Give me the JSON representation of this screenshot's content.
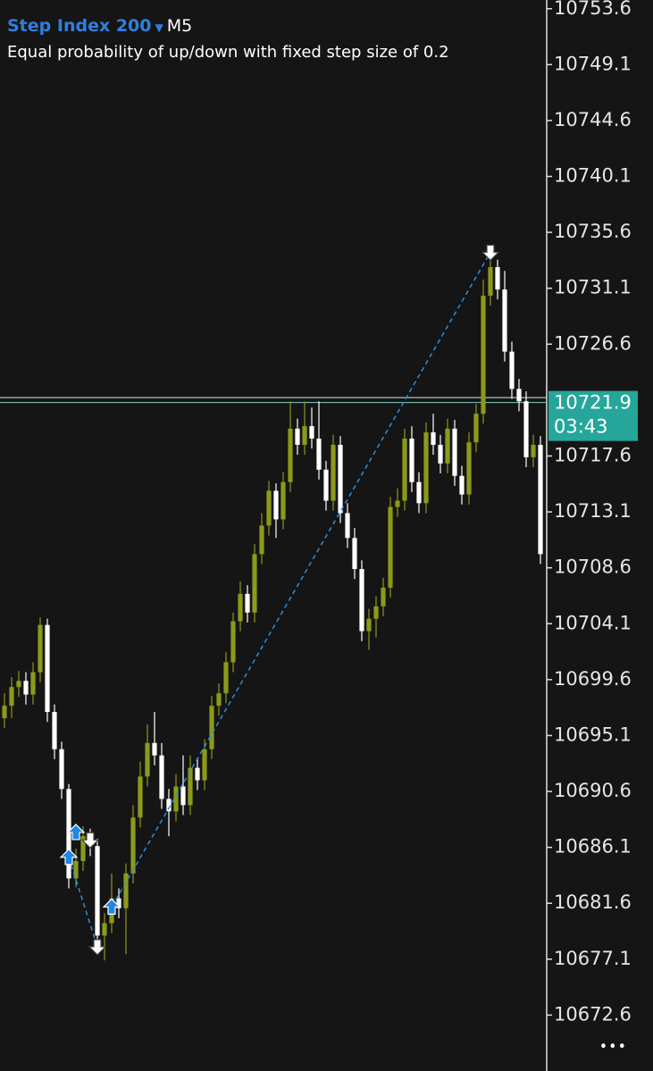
{
  "chart_data": {
    "type": "candlestick",
    "title": "Step Index 200",
    "timeframe": "M5",
    "subtitle": "Equal probability of up/down with fixed step size of 0.2",
    "open": [
      10696.5,
      10697.5,
      10699.0,
      10699.5,
      10698.4,
      10700.2,
      10704.0,
      10697.0,
      10694.0,
      10690.8,
      10683.6,
      10685.0,
      10687.0,
      10686.2,
      10679.0,
      10680.0,
      10682.0,
      10681.2,
      10684.0,
      10688.5,
      10691.8,
      10694.5,
      10693.5,
      10690.0,
      10689.0,
      10691.0,
      10689.5,
      10692.5,
      10691.5,
      10694.0,
      10697.5,
      10698.5,
      10701.0,
      10704.3,
      10706.5,
      10705.0,
      10709.7,
      10712.0,
      10714.8,
      10712.5,
      10715.5,
      10719.8,
      10718.5,
      10720.0,
      10719.0,
      10716.5,
      10714.0,
      10718.5,
      10713.0,
      10711.0,
      10708.5,
      10703.5,
      10704.5,
      10705.5,
      10707.0,
      10713.5,
      10714.0,
      10719.0,
      10715.5,
      10713.8,
      10719.5,
      10718.5,
      10717.0,
      10719.8,
      10716.0,
      10714.5,
      10718.7,
      10721.0,
      10730.5,
      10732.8,
      10731.0,
      10726.0,
      10723.0,
      10722.0,
      10717.5,
      10718.5
    ],
    "high": [
      10698.5,
      10699.8,
      10700.3,
      10700.2,
      10701.0,
      10704.6,
      10704.5,
      10697.6,
      10694.6,
      10691.2,
      10686.0,
      10687.8,
      10687.6,
      10686.8,
      10680.8,
      10684.0,
      10682.8,
      10684.8,
      10689.5,
      10693.0,
      10696.0,
      10697.0,
      10694.5,
      10690.8,
      10692.0,
      10693.5,
      10693.5,
      10693.2,
      10694.8,
      10698.3,
      10699.3,
      10701.8,
      10705.0,
      10707.5,
      10707.2,
      10710.5,
      10713.0,
      10715.6,
      10715.4,
      10716.3,
      10722.0,
      10720.6,
      10722.0,
      10721.5,
      10722.0,
      10717.2,
      10719.3,
      10719.2,
      10713.8,
      10711.8,
      10709.2,
      10705.3,
      10706.3,
      10707.8,
      10714.3,
      10715.0,
      10719.8,
      10720.0,
      10716.3,
      10720.3,
      10721.0,
      10719.3,
      10720.6,
      10720.5,
      10716.8,
      10719.5,
      10721.8,
      10731.8,
      10733.6,
      10733.4,
      10732.5,
      10726.8,
      10723.8,
      10722.8,
      10719.3,
      10719.2
    ],
    "low": [
      10695.7,
      10696.5,
      10698.2,
      10697.6,
      10697.6,
      10699.4,
      10696.2,
      10693.2,
      10690.0,
      10682.8,
      10682.9,
      10684.2,
      10685.4,
      10678.2,
      10677.0,
      10679.2,
      10680.4,
      10677.5,
      10683.2,
      10687.7,
      10691.0,
      10692.7,
      10689.2,
      10687.0,
      10688.2,
      10688.7,
      10688.7,
      10690.7,
      10690.7,
      10693.2,
      10696.7,
      10697.7,
      10700.2,
      10703.5,
      10704.2,
      10704.2,
      10708.9,
      10711.2,
      10711.0,
      10711.7,
      10714.7,
      10717.7,
      10717.7,
      10718.2,
      10715.7,
      10713.2,
      10713.2,
      10712.2,
      10710.2,
      10707.7,
      10702.7,
      10702.0,
      10703.0,
      10704.7,
      10706.2,
      10712.7,
      10713.2,
      10714.7,
      10713.0,
      10713.0,
      10717.7,
      10716.2,
      10716.2,
      10715.2,
      10713.7,
      10713.7,
      10717.9,
      10720.2,
      10729.7,
      10730.2,
      10725.2,
      10722.2,
      10721.2,
      10716.7,
      10716.7,
      10708.9
    ],
    "close": [
      10697.5,
      10699.0,
      10699.5,
      10698.4,
      10700.2,
      10704.0,
      10697.0,
      10694.0,
      10690.8,
      10683.6,
      10685.0,
      10687.0,
      10686.2,
      10679.0,
      10680.0,
      10682.0,
      10681.2,
      10684.0,
      10688.5,
      10691.8,
      10694.5,
      10693.5,
      10690.0,
      10689.0,
      10691.0,
      10689.5,
      10692.5,
      10691.5,
      10694.0,
      10697.5,
      10698.5,
      10701.0,
      10704.3,
      10706.5,
      10705.0,
      10709.7,
      10712.0,
      10714.8,
      10712.5,
      10715.5,
      10719.8,
      10718.5,
      10720.0,
      10719.0,
      10716.5,
      10714.0,
      10718.5,
      10713.0,
      10711.0,
      10708.5,
      10703.5,
      10704.5,
      10705.5,
      10707.0,
      10713.5,
      10714.0,
      10719.0,
      10715.5,
      10713.8,
      10719.5,
      10718.5,
      10717.0,
      10719.8,
      10716.0,
      10714.5,
      10718.7,
      10721.0,
      10730.5,
      10732.8,
      10731.0,
      10726.0,
      10723.0,
      10722.0,
      10717.5,
      10718.5,
      10709.7
    ],
    "up_color": "#8c9a1b",
    "down_color": "#ffffff",
    "ylim": [
      10668.1,
      10754.3
    ],
    "yticks": [
      10753.6,
      10749.1,
      10744.6,
      10740.1,
      10735.6,
      10731.1,
      10726.6,
      10717.6,
      10713.1,
      10708.6,
      10704.1,
      10699.6,
      10695.1,
      10690.6,
      10686.1,
      10681.6,
      10677.1,
      10672.6
    ],
    "bid_line": 10721.9,
    "ask_line": 10722.3,
    "price_label": "10721.9",
    "timer": "03:43",
    "label_color": "#26a69a",
    "markers": [
      {
        "dir": "up",
        "index": 9,
        "price": 10685.3
      },
      {
        "dir": "up",
        "index": 10,
        "price": 10687.3
      },
      {
        "dir": "down",
        "index": 12,
        "price": 10686.7
      },
      {
        "dir": "down",
        "index": 13,
        "price": 10678.1
      },
      {
        "dir": "up",
        "index": 15,
        "price": 10681.3
      },
      {
        "dir": "down",
        "index": 68,
        "price": 10734.0
      }
    ],
    "trades": [
      {
        "open_index": 9,
        "open_price": 10685.3,
        "close_index": 13,
        "close_price": 10678.1
      },
      {
        "open_index": 15,
        "open_price": 10681.3,
        "close_index": 68,
        "close_price": 10734.0
      }
    ]
  }
}
